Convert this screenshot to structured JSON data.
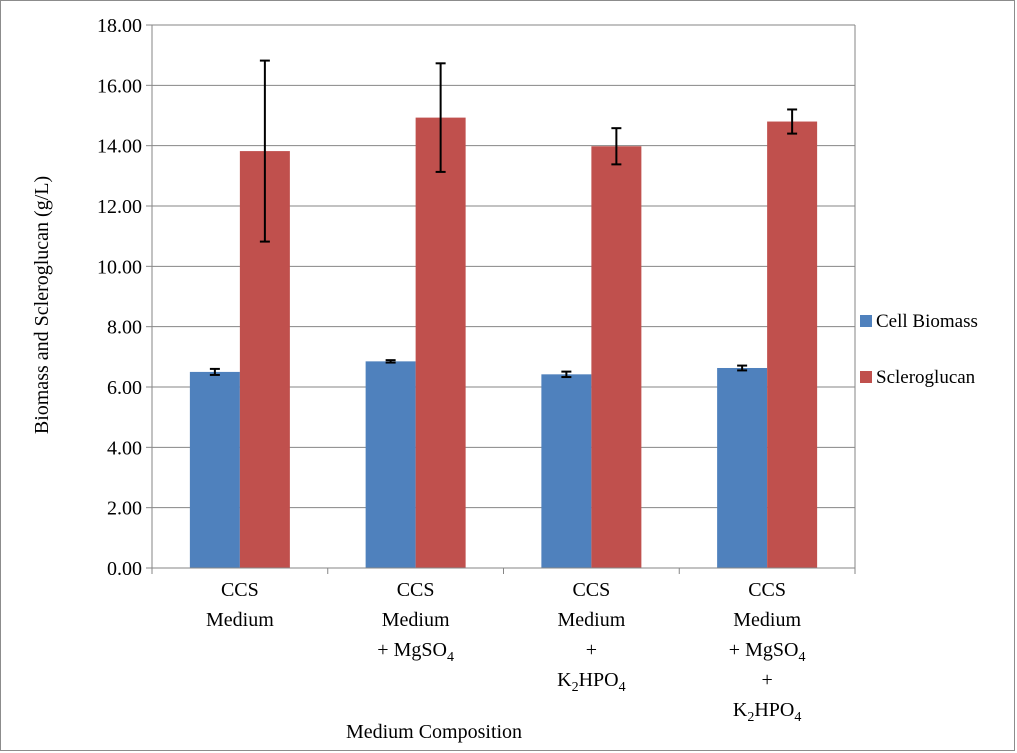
{
  "chart_data": {
    "type": "bar",
    "title": "",
    "xlabel": "Medium Composition",
    "ylabel": "Biomass and Scleroglucan (g/L)",
    "ylim": [
      0,
      18
    ],
    "yticks": [
      "0.00",
      "2.00",
      "4.00",
      "6.00",
      "8.00",
      "10.00",
      "12.00",
      "14.00",
      "16.00",
      "18.00"
    ],
    "grid": true,
    "legend_position": "right",
    "categories": [
      [
        {
          "t": "CCS"
        },
        {
          "t": "Medium"
        }
      ],
      [
        {
          "t": "CCS"
        },
        {
          "t": "Medium"
        },
        {
          "t": "+ MgSO",
          "sub": "4"
        }
      ],
      [
        {
          "t": "CCS"
        },
        {
          "t": "Medium"
        },
        {
          "t": "+"
        },
        {
          "t": "K",
          "sub": "2",
          "t2": "HPO",
          "sub2": "4"
        }
      ],
      [
        {
          "t": "CCS"
        },
        {
          "t": "Medium"
        },
        {
          "t": "+ MgSO",
          "sub": "4"
        },
        {
          "t": "+"
        },
        {
          "t": "K",
          "sub": "2",
          "t2": "HPO",
          "sub2": "4"
        }
      ]
    ],
    "series": [
      {
        "name": "Cell Biomass",
        "color": "#4f81bd",
        "values": [
          6.5,
          6.85,
          6.42,
          6.63
        ],
        "errors": [
          0.1,
          0.04,
          0.09,
          0.08
        ]
      },
      {
        "name": "Scleroglucan",
        "color": "#c0504d",
        "values": [
          13.82,
          14.93,
          13.98,
          14.8
        ],
        "errors": [
          3.0,
          1.8,
          0.6,
          0.4
        ]
      }
    ]
  }
}
